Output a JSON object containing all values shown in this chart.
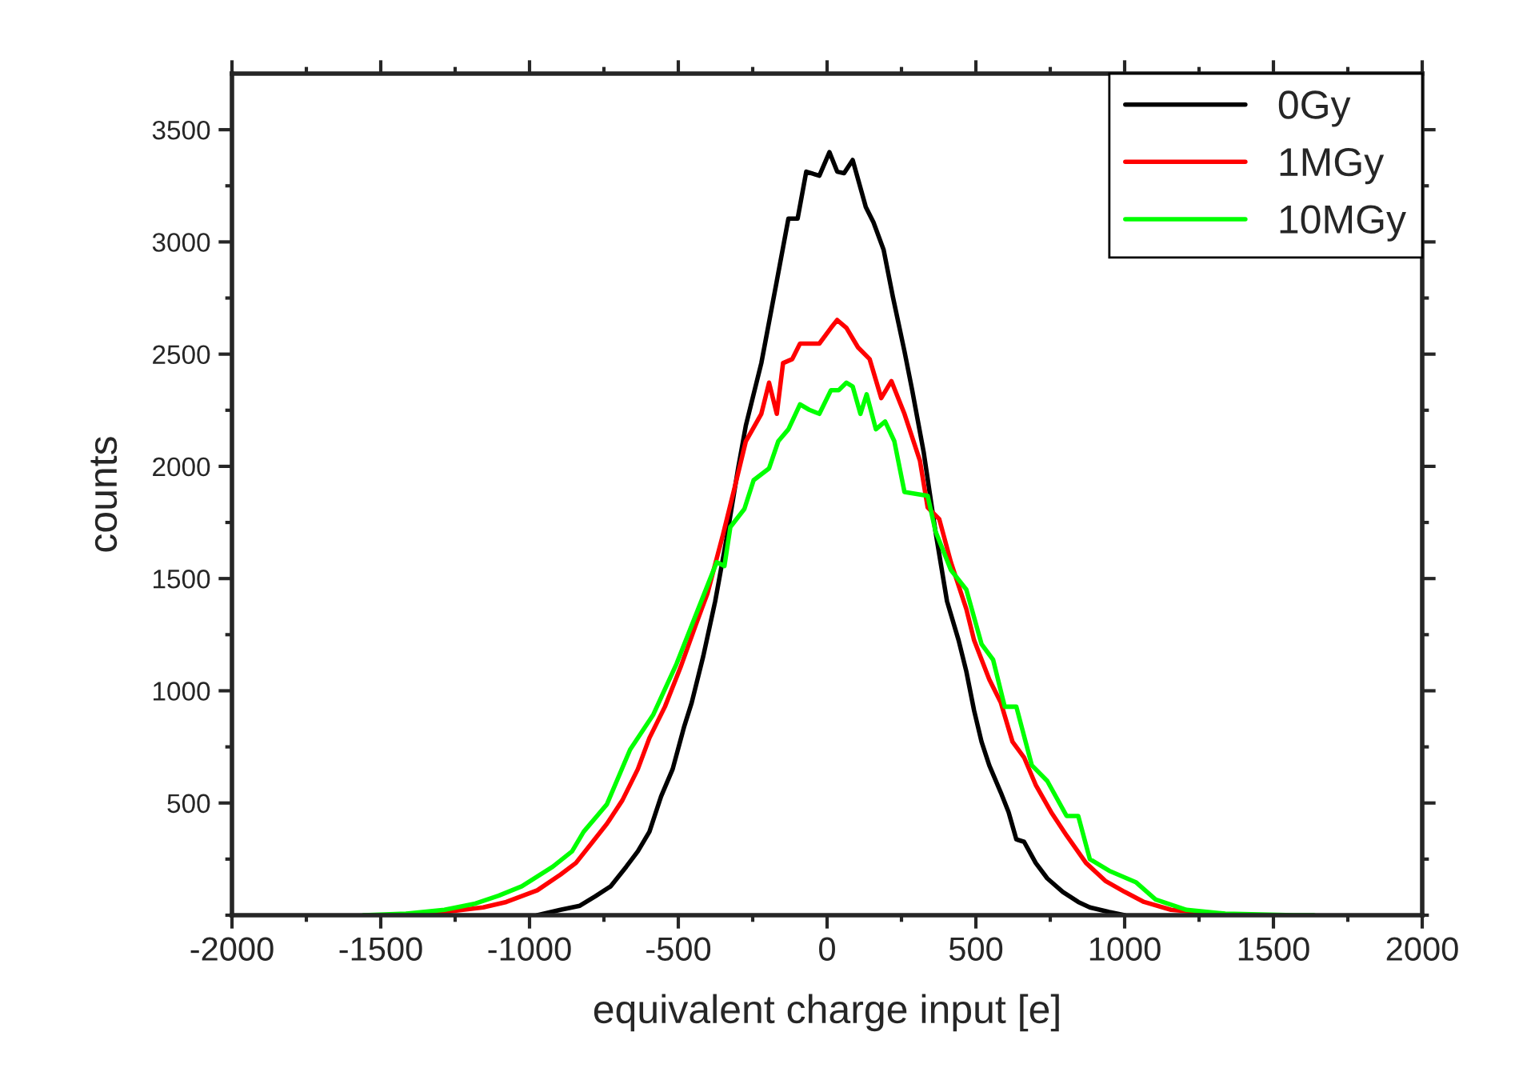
{
  "chart_data": {
    "type": "line",
    "xlabel": "equivalent charge input [e]",
    "ylabel": "counts",
    "xlim": [
      -2000,
      2000
    ],
    "ylim": [
      0,
      3750
    ],
    "xticks": [
      -2000,
      {
        "value": -1750,
        "label": null
      },
      -1500,
      {
        "value": -1250,
        "label": null
      },
      -1000,
      {
        "value": -750,
        "label": null
      },
      -500,
      {
        "value": -250,
        "label": null
      },
      0,
      {
        "value": 250,
        "label": null
      },
      500,
      {
        "value": 750,
        "label": null
      },
      1000,
      {
        "value": 1250,
        "label": null
      },
      1500,
      {
        "value": 1750,
        "label": null
      },
      2000
    ],
    "yticks": [
      {
        "value": 0,
        "label": null
      },
      {
        "value": 250,
        "label": null
      },
      500,
      {
        "value": 750,
        "label": null
      },
      1000,
      {
        "value": 1250,
        "label": null
      },
      1500,
      {
        "value": 1750,
        "label": null
      },
      2000,
      {
        "value": 2250,
        "label": null
      },
      2500,
      {
        "value": 2750,
        "label": null
      },
      3000,
      {
        "value": 3250,
        "label": null
      },
      3500
    ],
    "grid": false,
    "legend": "top right",
    "marker": "none",
    "line_style": "solid",
    "series": [
      {
        "name": "0Gy",
        "color": "#000000",
        "x": [
          -974,
          -896,
          -831,
          -779,
          -727,
          -675,
          -636,
          -597,
          -558,
          -519,
          -480,
          -455,
          -416,
          -376,
          -338,
          -299,
          -273,
          -221,
          -169,
          -130,
          -99,
          -70,
          -26,
          8,
          34,
          57,
          86,
          130,
          156,
          190,
          221,
          260,
          286,
          325,
          364,
          403,
          442,
          468,
          494,
          519,
          545,
          584,
          610,
          636,
          662,
          701,
          740,
          792,
          844,
          883,
          948,
          1000
        ],
        "values": [
          0,
          24,
          42,
          84,
          129,
          216,
          285,
          372,
          529,
          651,
          842,
          947,
          1155,
          1399,
          1677,
          1991,
          2182,
          2460,
          2826,
          3104,
          3104,
          3313,
          3295,
          3400,
          3313,
          3306,
          3365,
          3156,
          3087,
          2965,
          2756,
          2513,
          2339,
          2060,
          1712,
          1399,
          1225,
          1086,
          912,
          773,
          668,
          546,
          459,
          338,
          327,
          233,
          164,
          104,
          59,
          35,
          14,
          0
        ]
      },
      {
        "name": "1MGy",
        "color": "#ff0000",
        "x": [
          -1415,
          -1286,
          -1156,
          -1078,
          -974,
          -896,
          -844,
          -792,
          -740,
          -688,
          -636,
          -597,
          -545,
          -493,
          -441,
          -402,
          -350,
          -311,
          -273,
          -221,
          -195,
          -169,
          -148,
          -117,
          -91,
          -26,
          13,
          34,
          65,
          104,
          143,
          182,
          216,
          260,
          312,
          338,
          377,
          416,
          468,
          494,
          545,
          584,
          623,
          662,
          701,
          753,
          805,
          870,
          935,
          1000,
          1065,
          1156,
          1260,
          1364
        ],
        "values": [
          0,
          14,
          35,
          59,
          111,
          181,
          233,
          320,
          407,
          512,
          651,
          790,
          929,
          1103,
          1295,
          1434,
          1695,
          1904,
          2112,
          2234,
          2373,
          2234,
          2460,
          2478,
          2547,
          2547,
          2617,
          2652,
          2617,
          2530,
          2478,
          2304,
          2380,
          2234,
          2025,
          1817,
          1765,
          1573,
          1364,
          1225,
          1051,
          947,
          773,
          703,
          581,
          459,
          355,
          233,
          153,
          104,
          59,
          24,
          null,
          0
        ]
      },
      {
        "name": "10MGy",
        "color": "#00ff00",
        "x": [
          -1558,
          -1415,
          -1286,
          -1182,
          -1104,
          -1026,
          -922,
          -857,
          -818,
          -740,
          -662,
          -584,
          -506,
          -454,
          -402,
          -371,
          -345,
          -325,
          -278,
          -247,
          -195,
          -164,
          -130,
          -91,
          -60,
          -26,
          13,
          39,
          65,
          86,
          112,
          133,
          164,
          195,
          226,
          260,
          338,
          364,
          416,
          468,
          519,
          558,
          597,
          636,
          688,
          740,
          805,
          844,
          883,
          948,
          1039,
          1104,
          1208,
          1338,
          1571,
          1636
        ],
        "values": [
          0,
          7,
          24,
          52,
          87,
          129,
          216,
          285,
          372,
          494,
          738,
          894,
          1120,
          1295,
          1469,
          1573,
          1556,
          1730,
          1810,
          1938,
          1991,
          2112,
          2165,
          2276,
          2252,
          2234,
          2339,
          2339,
          2373,
          2356,
          2234,
          2321,
          2165,
          2200,
          2112,
          1886,
          1869,
          1712,
          1538,
          1451,
          1208,
          1138,
          929,
          929,
          668,
          598,
          442,
          442,
          250,
          198,
          146,
          70,
          24,
          7,
          0,
          0
        ]
      }
    ]
  }
}
